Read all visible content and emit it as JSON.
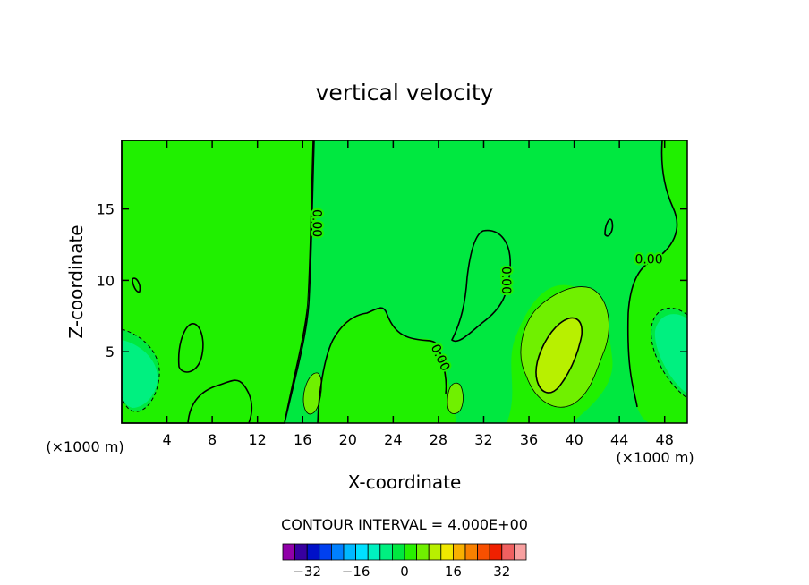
{
  "chart_data": {
    "type": "heatmap",
    "title": "vertical velocity",
    "xlabel": "X-coordinate",
    "ylabel": "Z-coordinate",
    "x_unit": "(×1000 m)",
    "x_ticks": [
      4,
      8,
      12,
      16,
      20,
      24,
      28,
      32,
      36,
      40,
      44,
      48
    ],
    "y_ticks": [
      5,
      10,
      15
    ],
    "xlim": [
      0,
      50
    ],
    "ylim": [
      0,
      19.8
    ],
    "grid": false,
    "contour_interval_label": "CONTOUR INTERVAL = 4.000E+00",
    "contour_labels": [
      {
        "text": "0.00",
        "x": 17.3,
        "z": 14.0,
        "rotate": 90
      },
      {
        "text": "0.00",
        "x": 34.0,
        "z": 10.0,
        "rotate": 90
      },
      {
        "text": "0.00",
        "x": 28.2,
        "z": 4.6,
        "rotate": 65
      },
      {
        "text": "0.00",
        "x": 46.6,
        "z": 11.5,
        "rotate": 0
      }
    ],
    "colorbar": {
      "colors": [
        "#9000a8",
        "#3800a0",
        "#0010c8",
        "#0040f0",
        "#0080ff",
        "#00b8ff",
        "#00e0ff",
        "#00f0c0",
        "#00f080",
        "#00e840",
        "#28f000",
        "#70f000",
        "#b8f000",
        "#f0e800",
        "#f8b000",
        "#f88000",
        "#f85000",
        "#f02000",
        "#f06060",
        "#f8a0a0"
      ],
      "tick_labels": [
        "−32",
        "−16",
        "0",
        "16",
        "32"
      ],
      "tick_values": [
        -32,
        -16,
        0,
        16,
        32
      ]
    },
    "colors": {
      "background_field": "#20f000",
      "weak_negative": "#00e840",
      "moderate_negative": "#00f080",
      "weak_positive": "#70f000",
      "moderate_positive": "#b8f000"
    }
  }
}
